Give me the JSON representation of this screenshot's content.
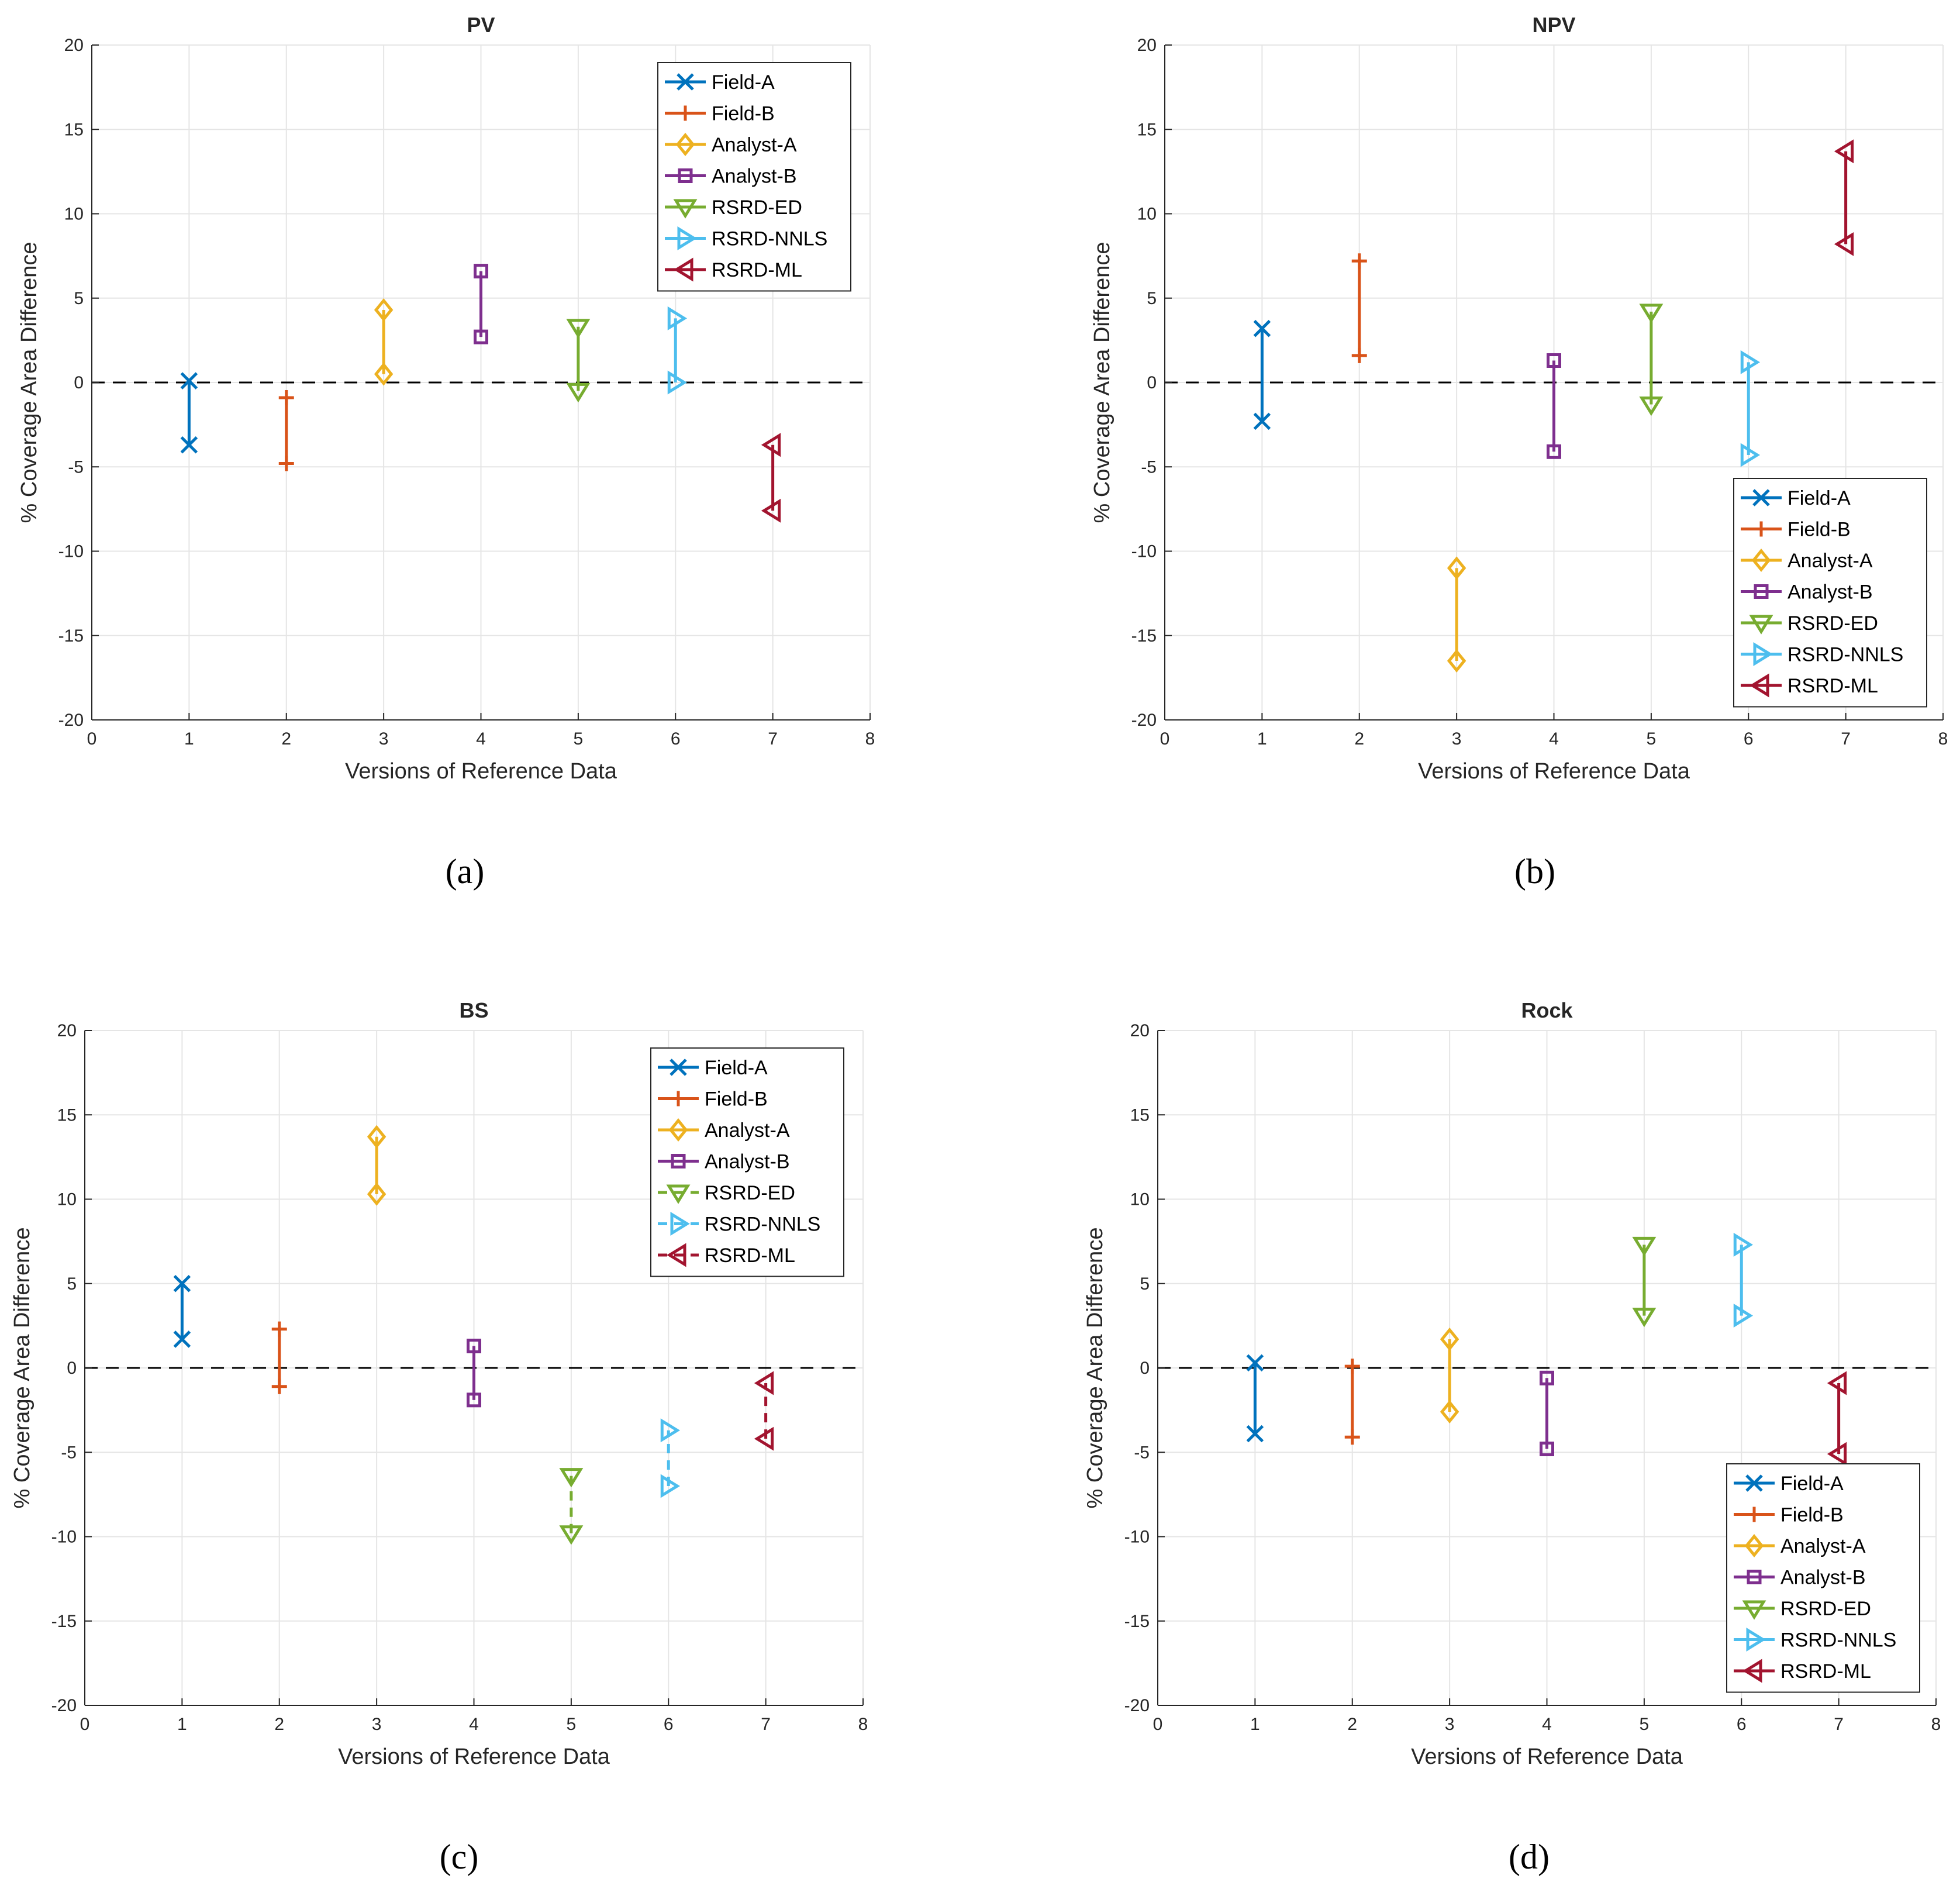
{
  "captions": [
    "(a)",
    "(b)",
    "(c)",
    "(d)"
  ],
  "palette": {
    "Field-A": "#0072BD",
    "Field-B": "#D95319",
    "Analyst-A": "#EDB120",
    "Analyst-B": "#7E2F8E",
    "RSRD-ED": "#77AC30",
    "RSRD-NNLS": "#4DBEEE",
    "RSRD-ML": "#A2142F",
    "grid": "#e5e5e5",
    "axis": "#262626"
  },
  "markers": {
    "Field-A": "x",
    "Field-B": "plus",
    "Analyst-A": "diamond",
    "Analyst-B": "square",
    "RSRD-ED": "triangle-down",
    "RSRD-NNLS": "triangle-right",
    "RSRD-ML": "triangle-left"
  },
  "chart_data": [
    {
      "type": "errorbar",
      "title": "PV",
      "xlabel": "Versions of Reference Data",
      "ylabel": "% Coverage Area Difference",
      "xlim": [
        0,
        8
      ],
      "ylim": [
        -20,
        20
      ],
      "xticks": [
        0,
        1,
        2,
        3,
        4,
        5,
        6,
        7,
        8
      ],
      "yticks": [
        -20,
        -15,
        -10,
        -5,
        0,
        5,
        10,
        15,
        20
      ],
      "grid": true,
      "zero_line": "dashed",
      "legend_position": "top-right",
      "series": [
        {
          "name": "Field-A",
          "x": 1,
          "y_low": -3.7,
          "y_high": 0.1,
          "line": "solid"
        },
        {
          "name": "Field-B",
          "x": 2,
          "y_low": -4.8,
          "y_high": -0.9,
          "line": "solid"
        },
        {
          "name": "Analyst-A",
          "x": 3,
          "y_low": 0.5,
          "y_high": 4.3,
          "line": "solid"
        },
        {
          "name": "Analyst-B",
          "x": 4,
          "y_low": 2.7,
          "y_high": 6.6,
          "line": "solid"
        },
        {
          "name": "RSRD-ED",
          "x": 5,
          "y_low": -0.5,
          "y_high": 3.3,
          "line": "solid"
        },
        {
          "name": "RSRD-NNLS",
          "x": 6,
          "y_low": 0.0,
          "y_high": 3.8,
          "line": "solid"
        },
        {
          "name": "RSRD-ML",
          "x": 7,
          "y_low": -7.6,
          "y_high": -3.7,
          "line": "solid"
        }
      ]
    },
    {
      "type": "errorbar",
      "title": "NPV",
      "xlabel": "Versions of Reference Data",
      "ylabel": "% Coverage Area Difference",
      "xlim": [
        0,
        8
      ],
      "ylim": [
        -20,
        20
      ],
      "xticks": [
        0,
        1,
        2,
        3,
        4,
        5,
        6,
        7,
        8
      ],
      "yticks": [
        -20,
        -15,
        -10,
        -5,
        0,
        5,
        10,
        15,
        20
      ],
      "grid": true,
      "zero_line": "dashed",
      "legend_position": "bottom-right",
      "series": [
        {
          "name": "Field-A",
          "x": 1,
          "y_low": -2.3,
          "y_high": 3.2,
          "line": "solid"
        },
        {
          "name": "Field-B",
          "x": 2,
          "y_low": 1.6,
          "y_high": 7.2,
          "line": "solid"
        },
        {
          "name": "Analyst-A",
          "x": 3,
          "y_low": -16.5,
          "y_high": -11.0,
          "line": "solid"
        },
        {
          "name": "Analyst-B",
          "x": 4,
          "y_low": -4.1,
          "y_high": 1.3,
          "line": "solid"
        },
        {
          "name": "RSRD-ED",
          "x": 5,
          "y_low": -1.3,
          "y_high": 4.2,
          "line": "solid"
        },
        {
          "name": "RSRD-NNLS",
          "x": 6,
          "y_low": -4.3,
          "y_high": 1.2,
          "line": "solid"
        },
        {
          "name": "RSRD-ML",
          "x": 7,
          "y_low": 8.2,
          "y_high": 13.7,
          "line": "solid"
        }
      ]
    },
    {
      "type": "errorbar",
      "title": "BS",
      "xlabel": "Versions of Reference Data",
      "ylabel": "% Coverage Area Difference",
      "xlim": [
        0,
        8
      ],
      "ylim": [
        -20,
        20
      ],
      "xticks": [
        0,
        1,
        2,
        3,
        4,
        5,
        6,
        7,
        8
      ],
      "yticks": [
        -20,
        -15,
        -10,
        -5,
        0,
        5,
        10,
        15,
        20
      ],
      "grid": true,
      "zero_line": "dashed",
      "legend_position": "top-right",
      "series": [
        {
          "name": "Field-A",
          "x": 1,
          "y_low": 1.7,
          "y_high": 5.0,
          "line": "solid"
        },
        {
          "name": "Field-B",
          "x": 2,
          "y_low": -1.1,
          "y_high": 2.3,
          "line": "solid"
        },
        {
          "name": "Analyst-A",
          "x": 3,
          "y_low": 10.3,
          "y_high": 13.7,
          "line": "solid"
        },
        {
          "name": "Analyst-B",
          "x": 4,
          "y_low": -1.9,
          "y_high": 1.3,
          "line": "solid"
        },
        {
          "name": "RSRD-ED",
          "x": 5,
          "y_low": -9.8,
          "y_high": -6.4,
          "line": "dashed"
        },
        {
          "name": "RSRD-NNLS",
          "x": 6,
          "y_low": -7.0,
          "y_high": -3.7,
          "line": "dashed"
        },
        {
          "name": "RSRD-ML",
          "x": 7,
          "y_low": -4.2,
          "y_high": -0.9,
          "line": "dashed"
        }
      ]
    },
    {
      "type": "errorbar",
      "title": "Rock",
      "xlabel": "Versions of Reference Data",
      "ylabel": "% Coverage Area Difference",
      "xlim": [
        0,
        8
      ],
      "ylim": [
        -20,
        20
      ],
      "xticks": [
        0,
        1,
        2,
        3,
        4,
        5,
        6,
        7,
        8
      ],
      "yticks": [
        -20,
        -15,
        -10,
        -5,
        0,
        5,
        10,
        15,
        20
      ],
      "grid": true,
      "zero_line": "dashed",
      "legend_position": "bottom-right",
      "series": [
        {
          "name": "Field-A",
          "x": 1,
          "y_low": -3.9,
          "y_high": 0.3,
          "line": "solid"
        },
        {
          "name": "Field-B",
          "x": 2,
          "y_low": -4.1,
          "y_high": 0.1,
          "line": "solid"
        },
        {
          "name": "Analyst-A",
          "x": 3,
          "y_low": -2.6,
          "y_high": 1.7,
          "line": "solid"
        },
        {
          "name": "Analyst-B",
          "x": 4,
          "y_low": -4.8,
          "y_high": -0.6,
          "line": "solid"
        },
        {
          "name": "RSRD-ED",
          "x": 5,
          "y_low": 3.1,
          "y_high": 7.3,
          "line": "solid"
        },
        {
          "name": "RSRD-NNLS",
          "x": 6,
          "y_low": 3.1,
          "y_high": 7.3,
          "line": "solid"
        },
        {
          "name": "RSRD-ML",
          "x": 7,
          "y_low": -5.1,
          "y_high": -0.9,
          "line": "solid"
        }
      ]
    }
  ]
}
